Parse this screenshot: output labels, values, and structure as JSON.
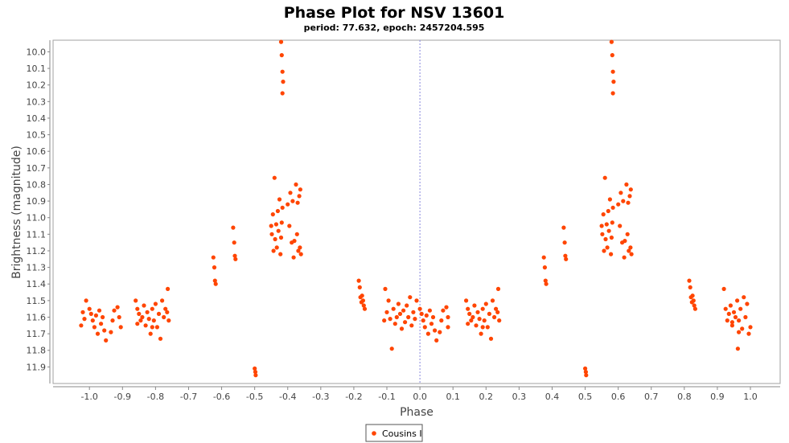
{
  "chart_data": {
    "type": "scatter",
    "title": "Phase Plot for NSV 13601",
    "subtitle": "period: 77.632, epoch: 2457204.595",
    "xlabel": "Phase",
    "ylabel": "Brightness (magnitude)",
    "xlim": [
      -1.11,
      1.09
    ],
    "ylim": [
      12.0,
      9.93
    ],
    "y_inverted": true,
    "x_ticks": [
      "-1.0",
      "-0.9",
      "-0.8",
      "-0.7",
      "-0.6",
      "-0.5",
      "-0.4",
      "-0.3",
      "-0.2",
      "-0.1",
      "0.0",
      "0.1",
      "0.2",
      "0.3",
      "0.4",
      "0.5",
      "0.6",
      "0.7",
      "0.8",
      "0.9",
      "1.0"
    ],
    "y_ticks": [
      "10.0",
      "10.1",
      "10.2",
      "10.3",
      "10.4",
      "10.5",
      "10.6",
      "10.7",
      "10.8",
      "10.9",
      "11.0",
      "11.1",
      "11.2",
      "11.3",
      "11.4",
      "11.5",
      "11.6",
      "11.7",
      "11.8",
      "11.9"
    ],
    "zero_line": 0.0,
    "grid": false,
    "legend_position": "bottom-center",
    "series": [
      {
        "name": "Cousins I",
        "color": "#ff4500",
        "points": [
          [
            0.0,
            11.55
          ],
          [
            0.005,
            11.58
          ],
          [
            0.01,
            11.62
          ],
          [
            0.015,
            11.66
          ],
          [
            0.02,
            11.59
          ],
          [
            0.025,
            11.7
          ],
          [
            0.03,
            11.56
          ],
          [
            0.035,
            11.64
          ],
          [
            0.04,
            11.6
          ],
          [
            0.045,
            11.68
          ],
          [
            0.05,
            11.74
          ],
          [
            -0.01,
            11.5
          ],
          [
            -0.015,
            11.61
          ],
          [
            -0.02,
            11.57
          ],
          [
            -0.025,
            11.65
          ],
          [
            -0.03,
            11.48
          ],
          [
            -0.035,
            11.6
          ],
          [
            -0.04,
            11.53
          ],
          [
            -0.045,
            11.63
          ],
          [
            -0.05,
            11.56
          ],
          [
            -0.055,
            11.67
          ],
          [
            -0.06,
            11.58
          ],
          [
            -0.065,
            11.52
          ],
          [
            -0.07,
            11.6
          ],
          [
            -0.075,
            11.64
          ],
          [
            -0.08,
            11.55
          ],
          [
            -0.085,
            11.79
          ],
          [
            -0.09,
            11.61
          ],
          [
            -0.095,
            11.5
          ],
          [
            -0.1,
            11.57
          ],
          [
            -0.105,
            11.43
          ],
          [
            -0.108,
            11.62
          ],
          [
            0.06,
            11.69
          ],
          [
            0.065,
            11.62
          ],
          [
            0.07,
            11.56
          ],
          [
            0.08,
            11.54
          ],
          [
            0.085,
            11.6
          ],
          [
            0.085,
            11.66
          ],
          [
            0.14,
            11.5
          ],
          [
            0.145,
            11.55
          ],
          [
            0.145,
            11.64
          ],
          [
            0.15,
            11.58
          ],
          [
            0.155,
            11.62
          ],
          [
            0.16,
            11.6
          ],
          [
            0.165,
            11.53
          ],
          [
            0.17,
            11.65
          ],
          [
            0.175,
            11.57
          ],
          [
            0.18,
            11.61
          ],
          [
            0.185,
            11.7
          ],
          [
            0.19,
            11.55
          ],
          [
            0.195,
            11.62
          ],
          [
            0.2,
            11.52
          ],
          [
            0.205,
            11.66
          ],
          [
            0.21,
            11.58
          ],
          [
            0.215,
            11.73
          ],
          [
            0.22,
            11.5
          ],
          [
            0.225,
            11.6
          ],
          [
            0.23,
            11.55
          ],
          [
            0.235,
            11.57
          ],
          [
            0.237,
            11.43
          ],
          [
            0.24,
            11.62
          ],
          [
            0.19,
            11.66
          ],
          [
            0.375,
            11.24
          ],
          [
            0.378,
            11.3
          ],
          [
            0.38,
            11.38
          ],
          [
            0.382,
            11.4
          ],
          [
            0.435,
            11.06
          ],
          [
            0.438,
            11.15
          ],
          [
            0.44,
            11.23
          ],
          [
            0.442,
            11.25
          ],
          [
            0.5,
            11.91
          ],
          [
            0.502,
            11.93
          ],
          [
            0.503,
            11.95
          ],
          [
            0.55,
            11.05
          ],
          [
            0.552,
            11.1
          ],
          [
            0.555,
            10.98
          ],
          [
            0.557,
            11.2
          ],
          [
            0.56,
            10.76
          ],
          [
            0.562,
            11.13
          ],
          [
            0.565,
            11.04
          ],
          [
            0.567,
            11.18
          ],
          [
            0.57,
            10.96
          ],
          [
            0.572,
            11.08
          ],
          [
            0.575,
            10.89
          ],
          [
            0.578,
            11.22
          ],
          [
            0.58,
            11.12
          ],
          [
            0.582,
            11.03
          ],
          [
            0.584,
            10.94
          ],
          [
            0.6,
            10.92
          ],
          [
            0.605,
            11.05
          ],
          [
            0.608,
            10.85
          ],
          [
            0.612,
            11.15
          ],
          [
            0.615,
            10.9
          ],
          [
            0.618,
            11.24
          ],
          [
            0.62,
            11.14
          ],
          [
            0.625,
            10.8
          ],
          [
            0.628,
            11.1
          ],
          [
            0.63,
            10.91
          ],
          [
            0.632,
            11.2
          ],
          [
            0.635,
            10.87
          ],
          [
            0.637,
            11.18
          ],
          [
            0.638,
            10.83
          ],
          [
            0.64,
            11.22
          ],
          [
            0.58,
            9.94
          ],
          [
            0.582,
            10.02
          ],
          [
            0.584,
            10.12
          ],
          [
            0.586,
            10.18
          ],
          [
            0.584,
            10.25
          ],
          [
            0.815,
            11.38
          ],
          [
            0.818,
            11.42
          ],
          [
            0.82,
            11.48
          ],
          [
            0.823,
            11.51
          ],
          [
            0.825,
            11.47
          ],
          [
            0.828,
            11.5
          ],
          [
            0.83,
            11.53
          ],
          [
            0.833,
            11.55
          ],
          [
            0.92,
            11.43
          ],
          [
            0.925,
            11.55
          ],
          [
            0.93,
            11.62
          ],
          [
            0.935,
            11.58
          ],
          [
            0.94,
            11.53
          ],
          [
            0.945,
            11.65
          ],
          [
            0.95,
            11.57
          ],
          [
            0.955,
            11.6
          ],
          [
            0.96,
            11.5
          ],
          [
            0.962,
            11.79
          ],
          [
            0.965,
            11.62
          ],
          [
            0.97,
            11.55
          ],
          [
            0.975,
            11.67
          ],
          [
            0.98,
            11.48
          ],
          [
            0.985,
            11.6
          ],
          [
            0.99,
            11.52
          ],
          [
            0.995,
            11.7
          ],
          [
            1.0,
            11.66
          ],
          [
            0.945,
            11.63
          ],
          [
            0.965,
            11.69
          ],
          [
            -1.0,
            11.55
          ],
          [
            -0.995,
            11.58
          ],
          [
            -0.99,
            11.62
          ],
          [
            -0.985,
            11.66
          ],
          [
            -0.98,
            11.59
          ],
          [
            -0.975,
            11.7
          ],
          [
            -0.97,
            11.56
          ],
          [
            -0.965,
            11.64
          ],
          [
            -0.96,
            11.6
          ],
          [
            -0.955,
            11.68
          ],
          [
            -0.95,
            11.74
          ],
          [
            -1.01,
            11.5
          ],
          [
            -1.015,
            11.61
          ],
          [
            -1.02,
            11.57
          ],
          [
            -1.025,
            11.65
          ],
          [
            -0.935,
            11.69
          ],
          [
            -0.93,
            11.62
          ],
          [
            -0.925,
            11.56
          ],
          [
            -0.915,
            11.54
          ],
          [
            -0.91,
            11.6
          ],
          [
            -0.905,
            11.66
          ],
          [
            -0.86,
            11.5
          ],
          [
            -0.855,
            11.55
          ],
          [
            -0.855,
            11.64
          ],
          [
            -0.85,
            11.58
          ],
          [
            -0.845,
            11.62
          ],
          [
            -0.84,
            11.6
          ],
          [
            -0.835,
            11.53
          ],
          [
            -0.83,
            11.65
          ],
          [
            -0.825,
            11.57
          ],
          [
            -0.82,
            11.61
          ],
          [
            -0.815,
            11.7
          ],
          [
            -0.81,
            11.55
          ],
          [
            -0.805,
            11.62
          ],
          [
            -0.8,
            11.52
          ],
          [
            -0.795,
            11.66
          ],
          [
            -0.79,
            11.58
          ],
          [
            -0.785,
            11.73
          ],
          [
            -0.78,
            11.5
          ],
          [
            -0.775,
            11.6
          ],
          [
            -0.77,
            11.55
          ],
          [
            -0.765,
            11.57
          ],
          [
            -0.763,
            11.43
          ],
          [
            -0.76,
            11.62
          ],
          [
            -0.81,
            11.66
          ],
          [
            -0.625,
            11.24
          ],
          [
            -0.622,
            11.3
          ],
          [
            -0.62,
            11.38
          ],
          [
            -0.618,
            11.4
          ],
          [
            -0.565,
            11.06
          ],
          [
            -0.562,
            11.15
          ],
          [
            -0.56,
            11.23
          ],
          [
            -0.558,
            11.25
          ],
          [
            -0.5,
            11.91
          ],
          [
            -0.498,
            11.93
          ],
          [
            -0.497,
            11.95
          ],
          [
            -0.45,
            11.05
          ],
          [
            -0.448,
            11.1
          ],
          [
            -0.445,
            10.98
          ],
          [
            -0.443,
            11.2
          ],
          [
            -0.44,
            10.76
          ],
          [
            -0.438,
            11.13
          ],
          [
            -0.435,
            11.04
          ],
          [
            -0.433,
            11.18
          ],
          [
            -0.43,
            10.96
          ],
          [
            -0.428,
            11.08
          ],
          [
            -0.425,
            10.89
          ],
          [
            -0.422,
            11.22
          ],
          [
            -0.42,
            11.12
          ],
          [
            -0.418,
            11.03
          ],
          [
            -0.416,
            10.94
          ],
          [
            -0.4,
            10.92
          ],
          [
            -0.395,
            11.05
          ],
          [
            -0.392,
            10.85
          ],
          [
            -0.388,
            11.15
          ],
          [
            -0.385,
            10.9
          ],
          [
            -0.382,
            11.24
          ],
          [
            -0.38,
            11.14
          ],
          [
            -0.375,
            10.8
          ],
          [
            -0.372,
            11.1
          ],
          [
            -0.37,
            10.91
          ],
          [
            -0.368,
            11.2
          ],
          [
            -0.365,
            10.87
          ],
          [
            -0.363,
            11.18
          ],
          [
            -0.362,
            10.83
          ],
          [
            -0.36,
            11.22
          ],
          [
            -0.42,
            9.94
          ],
          [
            -0.418,
            10.02
          ],
          [
            -0.416,
            10.12
          ],
          [
            -0.414,
            10.18
          ],
          [
            -0.416,
            10.25
          ],
          [
            -0.185,
            11.38
          ],
          [
            -0.182,
            11.42
          ],
          [
            -0.18,
            11.48
          ],
          [
            -0.177,
            11.51
          ],
          [
            -0.175,
            11.47
          ],
          [
            -0.172,
            11.5
          ],
          [
            -0.17,
            11.53
          ],
          [
            -0.167,
            11.55
          ]
        ]
      }
    ]
  }
}
